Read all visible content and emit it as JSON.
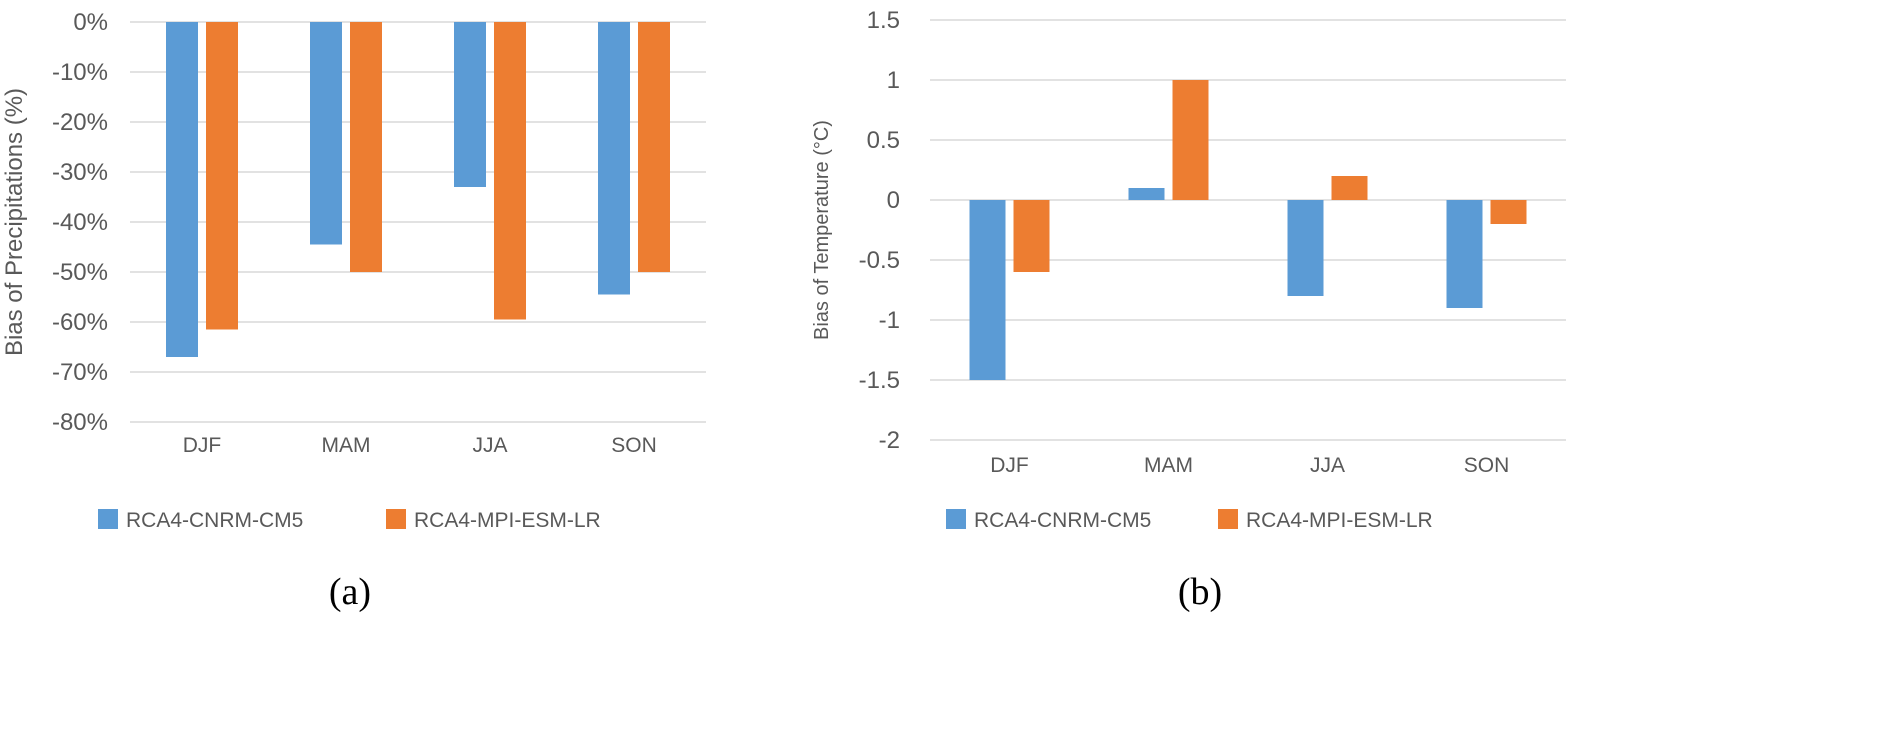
{
  "chart_data": [
    {
      "type": "bar",
      "panel_label": "(a)",
      "ylabel": "Bias of Precipitations (%)",
      "categories": [
        "DJF",
        "MAM",
        "JJA",
        "SON"
      ],
      "ylim": [
        -80,
        0
      ],
      "yticks": [
        0,
        -10,
        -20,
        -30,
        -40,
        -50,
        -60,
        -70,
        -80
      ],
      "ytick_labels": [
        "0%",
        "-10%",
        "-20%",
        "-30%",
        "-40%",
        "-50%",
        "-60%",
        "-70%",
        "-80%"
      ],
      "grid": true,
      "legend_position": "bottom",
      "series": [
        {
          "name": "RCA4-CNRM-CM5",
          "color": "#5B9BD5",
          "values": [
            -67,
            -44.5,
            -33,
            -54.5
          ]
        },
        {
          "name": "RCA4-MPI-ESM-LR",
          "color": "#ED7D31",
          "values": [
            -61.5,
            -50,
            -59.5,
            -50
          ]
        }
      ]
    },
    {
      "type": "bar",
      "panel_label": "(b)",
      "ylabel": "Bias of Temperature (°C)",
      "categories": [
        "DJF",
        "MAM",
        "JJA",
        "SON"
      ],
      "ylim": [
        -2,
        1.5
      ],
      "yticks": [
        1.5,
        1,
        0.5,
        0,
        -0.5,
        -1,
        -1.5,
        -2
      ],
      "ytick_labels": [
        "1.5",
        "1",
        "0.5",
        "0",
        "-0.5",
        "-1",
        "-1.5",
        "-2"
      ],
      "grid": true,
      "legend_position": "bottom",
      "series": [
        {
          "name": "RCA4-CNRM-CM5",
          "color": "#5B9BD5",
          "values": [
            -1.5,
            0.1,
            -0.8,
            -0.9
          ]
        },
        {
          "name": "RCA4-MPI-ESM-LR",
          "color": "#ED7D31",
          "values": [
            -0.6,
            1.0,
            0.2,
            -0.2
          ]
        }
      ]
    }
  ]
}
